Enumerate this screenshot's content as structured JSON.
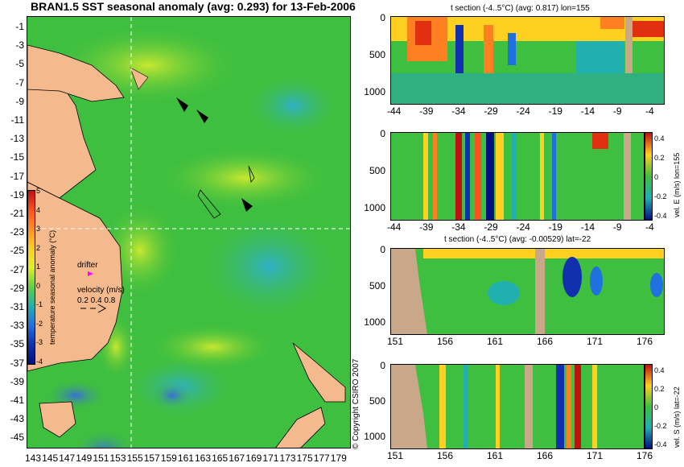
{
  "map": {
    "title": "BRAN1.5 SST seasonal anomaly (avg: 0.293) for 13-Feb-2006",
    "lat_ticks": [
      "-1",
      "-3",
      "-5",
      "-7",
      "-9",
      "-11",
      "-13",
      "-15",
      "-17",
      "-19",
      "-21",
      "-23",
      "-25",
      "-27",
      "-29",
      "-31",
      "-33",
      "-35",
      "-37",
      "-39",
      "-41",
      "-43",
      "-45"
    ],
    "lon_ticks": [
      "143",
      "145",
      "147",
      "149",
      "151",
      "153",
      "155",
      "157",
      "159",
      "161",
      "163",
      "165",
      "167",
      "169",
      "171",
      "173",
      "175",
      "177",
      "179"
    ],
    "colorbar": {
      "label": "temperature seasonal anomaly (°C)",
      "ticks": [
        "5",
        "4",
        "3",
        "2",
        "1",
        "0",
        "-1",
        "-2",
        "-3",
        "-4"
      ]
    },
    "drifter_label": "drifter",
    "velocity": {
      "label": "velocity (m/s)",
      "values": "0.2 0.4 0.8"
    },
    "copyright": "© Copyright CSIRO 2007",
    "land_color": "#f4b98c",
    "crosshair": {
      "lon": 155,
      "lat": -22
    }
  },
  "sections": [
    {
      "title": "t section (-4..5°C) (avg: 0.817) lon=155",
      "x_ticks": [
        "-44",
        "-39",
        "-34",
        "-29",
        "-24",
        "-19",
        "-14",
        "-9",
        "-4"
      ],
      "y_ticks": [
        "0",
        "500",
        "1000"
      ],
      "side_label": ""
    },
    {
      "title": "",
      "x_ticks": [
        "-44",
        "-39",
        "-34",
        "-29",
        "-24",
        "-19",
        "-14",
        "-9",
        "-4"
      ],
      "y_ticks": [
        "0",
        "500",
        "1000"
      ],
      "side_label": "vel. E (m/s) lon=155",
      "cb_ticks": [
        "0.4",
        "0.2",
        "0",
        "-0.2",
        "-0.4"
      ]
    },
    {
      "title": "t section (-4..5°C) (avg: -0.00529) lat=-22",
      "x_ticks": [
        "151",
        "156",
        "161",
        "166",
        "171",
        "176"
      ],
      "y_ticks": [
        "0",
        "500",
        "1000"
      ],
      "side_label": ""
    },
    {
      "title": "",
      "x_ticks": [
        "151",
        "156",
        "161",
        "166",
        "171",
        "176"
      ],
      "y_ticks": [
        "0",
        "500",
        "1000"
      ],
      "side_label": "vel. S (m/s) lat=-22",
      "cb_ticks": [
        "0.4",
        "0.2",
        "0",
        "-0.2",
        "-0.4"
      ]
    }
  ]
}
